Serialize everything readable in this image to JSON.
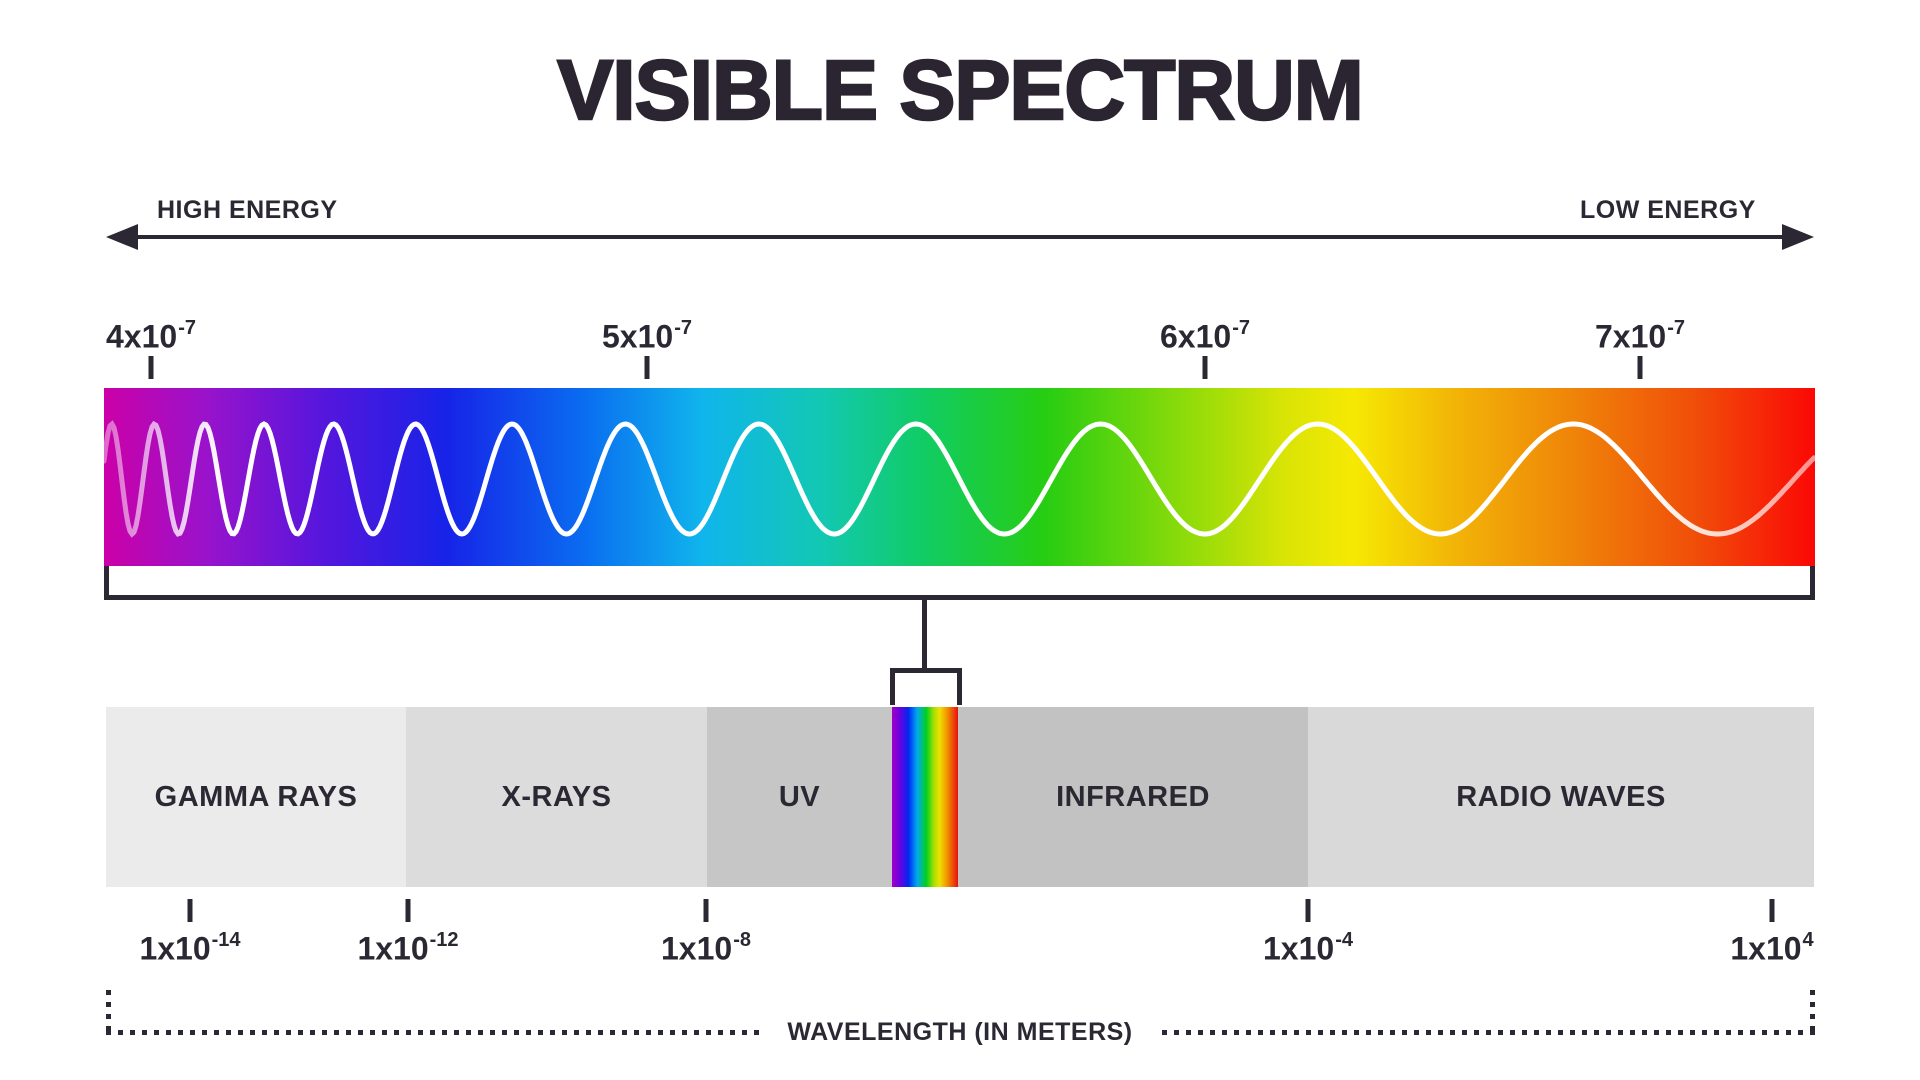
{
  "title": "VISIBLE SPECTRUM",
  "energy_axis": {
    "left_label": "HIGH ENERGY",
    "right_label": "LOW ENERGY"
  },
  "top_scale": {
    "unit": "meters (visible wavelengths)",
    "ticks": [
      {
        "base": "4x10",
        "exp": "-7"
      },
      {
        "base": "5x10",
        "exp": "-7"
      },
      {
        "base": "6x10",
        "exp": "-7"
      },
      {
        "base": "7x10",
        "exp": "-7"
      }
    ]
  },
  "em_band": {
    "labels": [
      "GAMMA RAYS",
      "X-RAYS",
      "UV",
      "INFRARED",
      "RADIO WAVES"
    ]
  },
  "bottom_scale": {
    "ticks": [
      {
        "base": "1x10",
        "exp": "-14"
      },
      {
        "base": "1x10",
        "exp": "-12"
      },
      {
        "base": "1x10",
        "exp": "-8"
      },
      {
        "base": "1x10",
        "exp": "-4"
      },
      {
        "base": "1x10",
        "exp": "4"
      }
    ]
  },
  "wavelength_axis": {
    "label": "WAVELENGTH (IN METERS)"
  },
  "colors": {
    "ink": "#2b2833",
    "segment_grays": [
      "#ebebeb",
      "#dcdcdc",
      "#c6c6c6",
      "#c2c2c2",
      "#d9d9d9"
    ],
    "spectrum_gradient": [
      {
        "c": "#cb00a8",
        "p": 0
      },
      {
        "c": "#9913cb",
        "p": 6
      },
      {
        "c": "#5416dd",
        "p": 13
      },
      {
        "c": "#1723e8",
        "p": 20
      },
      {
        "c": "#0a6cf0",
        "p": 28
      },
      {
        "c": "#10b5ec",
        "p": 35
      },
      {
        "c": "#12c8b2",
        "p": 42
      },
      {
        "c": "#11cc63",
        "p": 48
      },
      {
        "c": "#27cd12",
        "p": 55
      },
      {
        "c": "#7ed90b",
        "p": 62
      },
      {
        "c": "#d9e405",
        "p": 69
      },
      {
        "c": "#f6e903",
        "p": 73
      },
      {
        "c": "#f2b407",
        "p": 79
      },
      {
        "c": "#ef8309",
        "p": 86
      },
      {
        "c": "#f04e09",
        "p": 93
      },
      {
        "c": "#fb0806",
        "p": 100
      }
    ],
    "visible_strip_gradient": [
      {
        "c": "#a000c8",
        "p": 0
      },
      {
        "c": "#6a00e0",
        "p": 12
      },
      {
        "c": "#0028f0",
        "p": 25
      },
      {
        "c": "#00a8f0",
        "p": 38
      },
      {
        "c": "#00d020",
        "p": 52
      },
      {
        "c": "#a0e000",
        "p": 63
      },
      {
        "c": "#f0e000",
        "p": 72
      },
      {
        "c": "#f09000",
        "p": 84
      },
      {
        "c": "#e81010",
        "p": 100
      }
    ]
  }
}
